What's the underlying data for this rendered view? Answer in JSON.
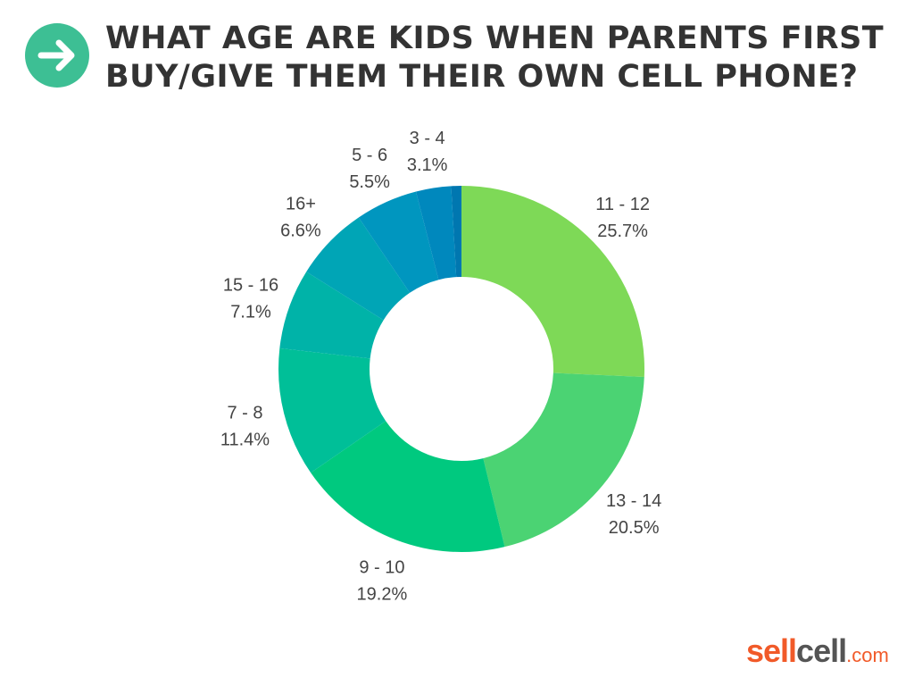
{
  "header": {
    "title": "WHAT AGE ARE KIDS WHEN PARENTS FIRST BUY/GIVE THEM THEIR OWN CELL PHONE?",
    "icon": "arrow-right-icon",
    "icon_color": "#3dbf94"
  },
  "chart_data": {
    "type": "pie",
    "donut": true,
    "title": "WHAT AGE ARE KIDS WHEN PARENTS FIRST BUY/GIVE THEM THEIR OWN CELL PHONE?",
    "unit": "%",
    "slices": [
      {
        "label": "11 - 12",
        "value": 25.7,
        "value_label": "25.7%",
        "color": "#7ed957"
      },
      {
        "label": "13 - 14",
        "value": 20.5,
        "value_label": "20.5%",
        "color": "#4bd373"
      },
      {
        "label": "9 - 10",
        "value": 19.2,
        "value_label": "19.2%",
        "color": "#00c97f"
      },
      {
        "label": "7 - 8",
        "value": 11.4,
        "value_label": "11.4%",
        "color": "#00bf98"
      },
      {
        "label": "15 - 16",
        "value": 7.1,
        "value_label": "7.1%",
        "color": "#00b3a8"
      },
      {
        "label": "16+",
        "value": 6.6,
        "value_label": "6.6%",
        "color": "#00a5b6"
      },
      {
        "label": "5 - 6",
        "value": 5.5,
        "value_label": "5.5%",
        "color": "#0096bf"
      },
      {
        "label": "3 - 4",
        "value": 3.1,
        "value_label": "3.1%",
        "color": "#0088bd"
      },
      {
        "label": "",
        "value": 0.9,
        "value_label": "",
        "color": "#0077b0"
      }
    ]
  },
  "logo": {
    "part1": "sell",
    "part2": "cell",
    "part3": ".com",
    "color1": "#f15a29",
    "color2": "#555555"
  }
}
